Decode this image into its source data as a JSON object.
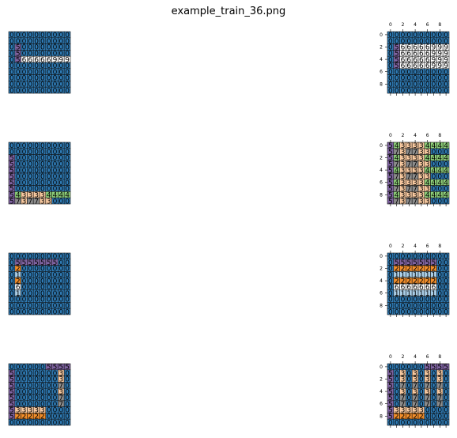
{
  "title": "example_train_36.png",
  "colors": {
    "0": "#2f7bb5",
    "1": "#a9cde6",
    "2": "#f28e2b",
    "3": "#f8c9a0",
    "4": "#8fd17a",
    "5": "#8064a2",
    "6": "#ffffff",
    "7": "#8c8c8c",
    "9": "#ffffff"
  },
  "ticks": [
    "0",
    "2",
    "4",
    "6",
    "8"
  ],
  "pairs": [
    {
      "input": [
        "0000000000",
        "0000000000",
        "0500000000",
        "0500000000",
        "0566666999",
        "0000000000",
        "0000000000",
        "0000000000",
        "0000000000",
        "0000000000"
      ],
      "output": [
        "0000000000",
        "0000000000",
        "0566666999",
        "0566666999",
        "0566666999",
        "0566666999",
        "0000000000",
        "0000000000",
        "0000000000",
        "0000000000"
      ]
    },
    {
      "input": [
        "0000000000",
        "0000000000",
        "5000000000",
        "5000000000",
        "5000000000",
        "5000000000",
        "5000000000",
        "5000000000",
        "5433334444",
        "5737733000"
      ],
      "output": [
        "5433334444",
        "5737733000",
        "5433334444",
        "5737733000",
        "5433334444",
        "5737733000",
        "5433334444",
        "5737733000",
        "5433334444",
        "5737733000"
      ]
    },
    {
      "input": [
        "0000000000",
        "0555555500",
        "0200000000",
        "0100000000",
        "0200000000",
        "0600000000",
        "0100000000",
        "0000000000",
        "0000000000",
        "0000000000"
      ],
      "output": [
        "0000000000",
        "0555555500",
        "0222222200",
        "0111111100",
        "0222222200",
        "0666666600",
        "0111111100",
        "0000000000",
        "0000000000",
        "0000000000"
      ]
    },
    {
      "input": [
        "0000005555",
        "5000000030",
        "5000000030",
        "5000000070",
        "5000000030",
        "5000000070",
        "5000000070",
        "5333330000",
        "5222220000",
        "0000000000"
      ],
      "output": [
        "0000005555",
        "5030303030",
        "5030303030",
        "5070707070",
        "5030303030",
        "5070707070",
        "5070707070",
        "5333330000",
        "5222220000",
        "0000000000"
      ]
    }
  ]
}
